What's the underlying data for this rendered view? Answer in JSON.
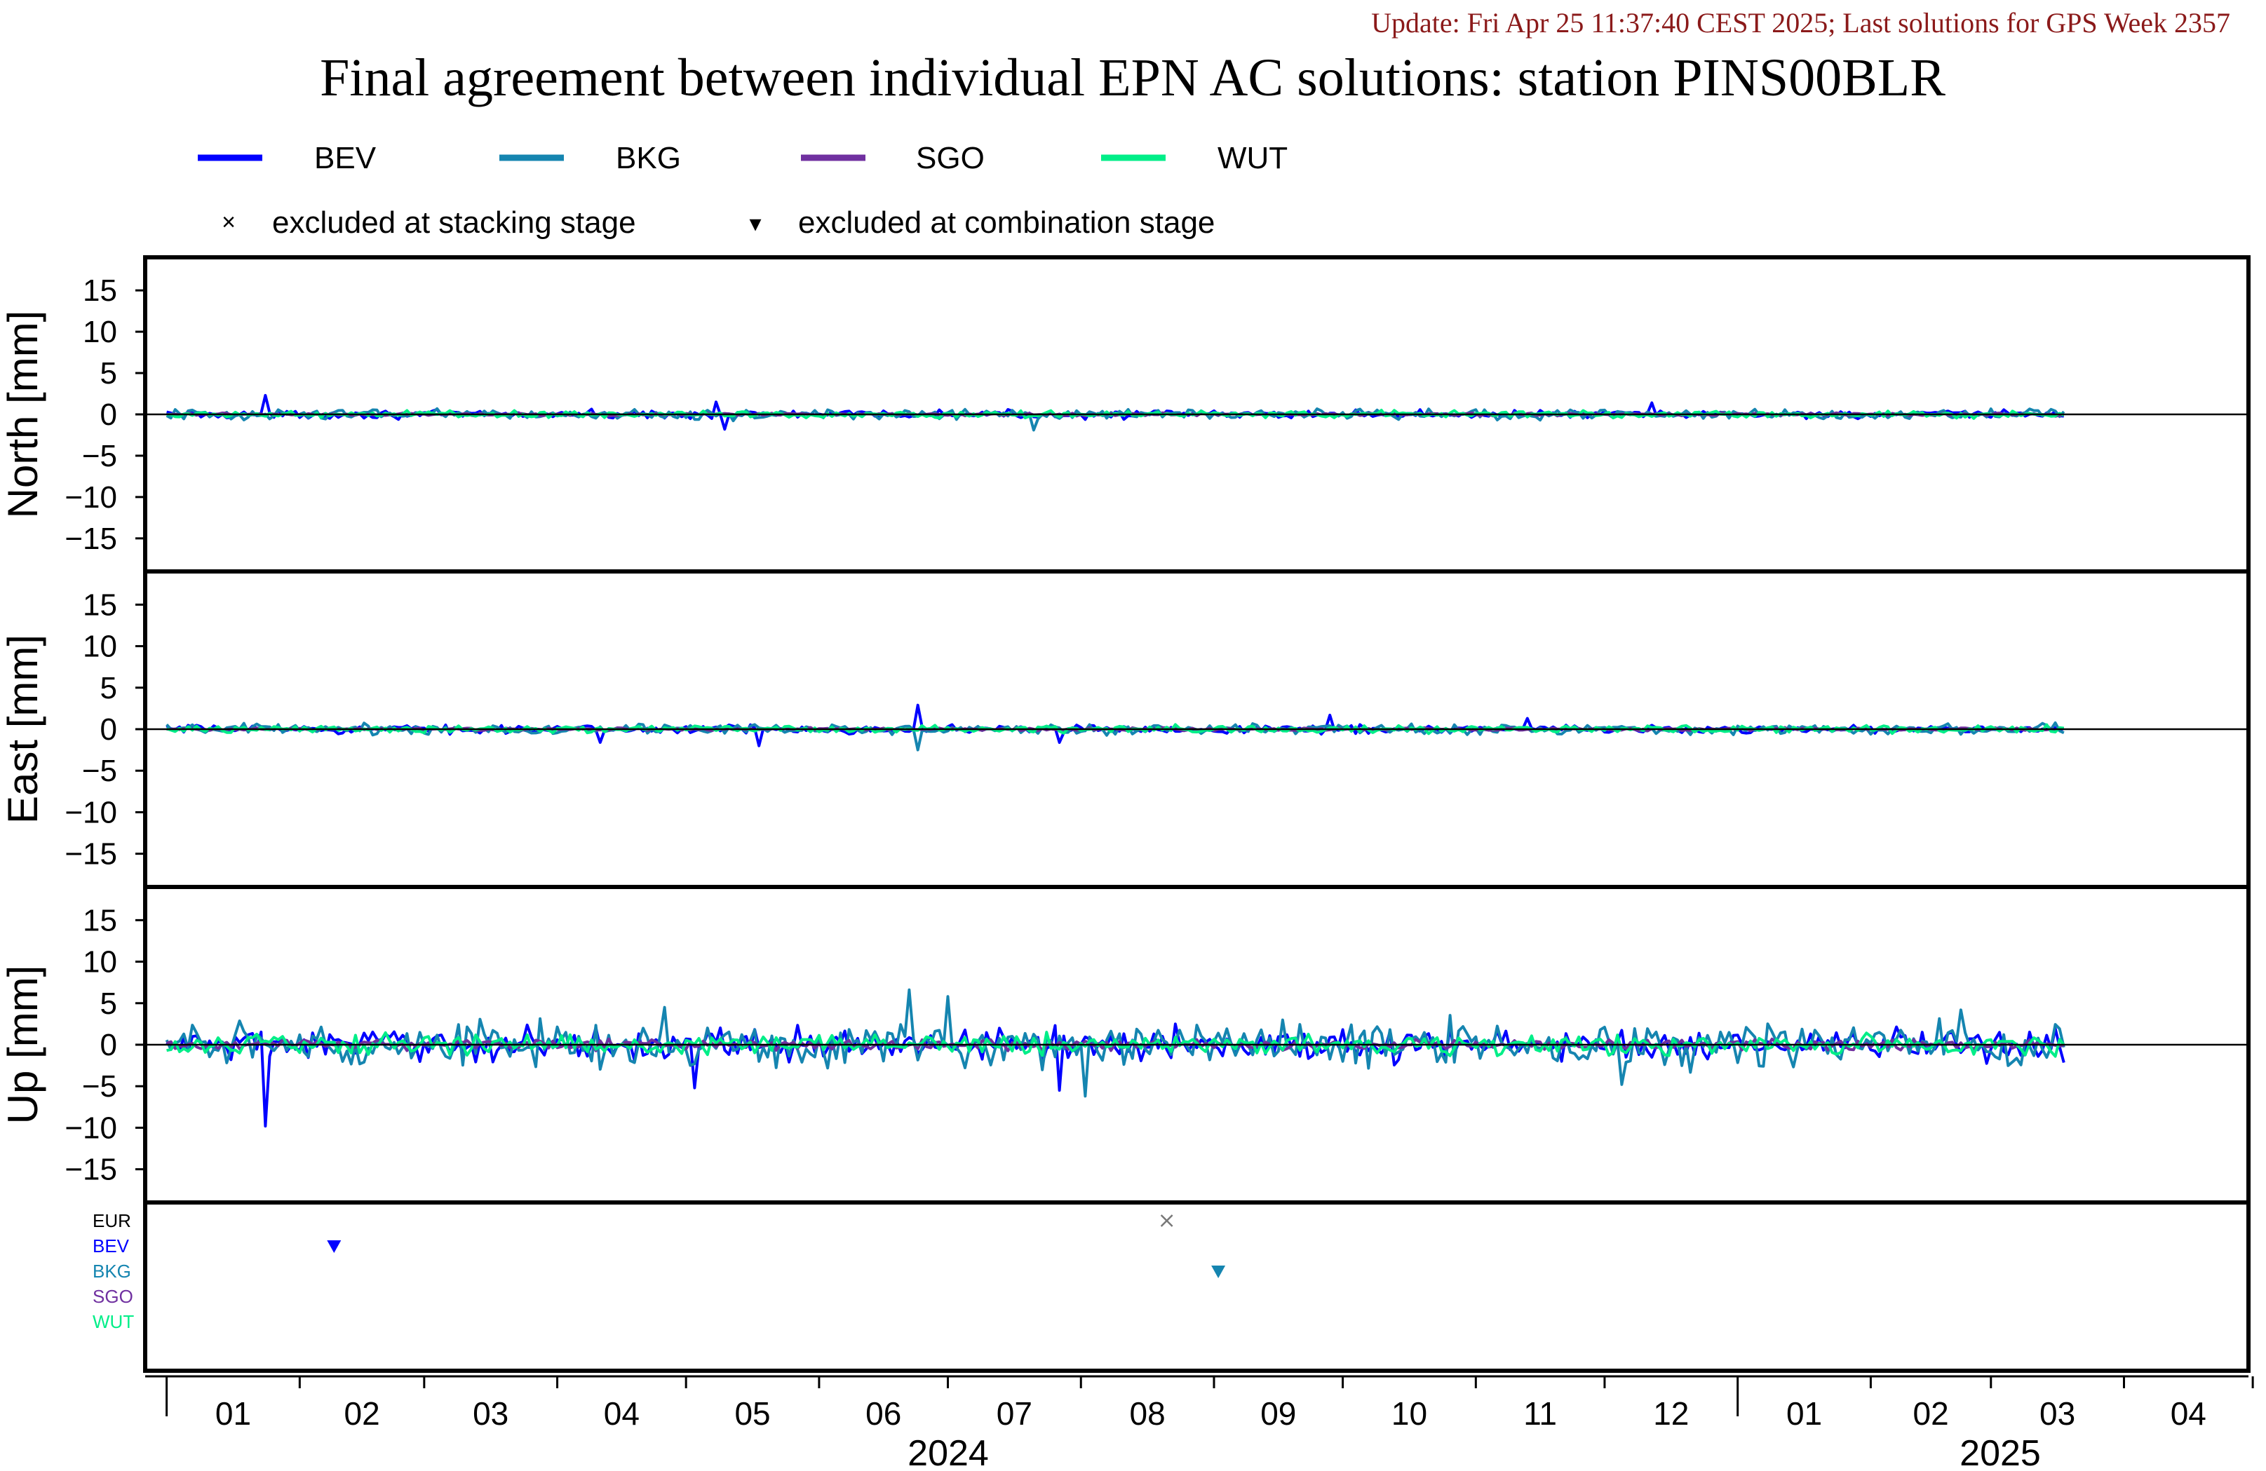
{
  "update_text": "Update: Fri Apr 25 11:37:40 CEST 2025; Last solutions for GPS Week 2357",
  "title": "Final agreement between individual EPN AC solutions: station PINS00BLR",
  "legend": {
    "series": [
      {
        "name": "BEV",
        "color": "#0000ff"
      },
      {
        "name": "BKG",
        "color": "#1585b0"
      },
      {
        "name": "SGO",
        "color": "#7030a0"
      },
      {
        "name": "WUT",
        "color": "#00ee88"
      }
    ],
    "stacking_label": "excluded at stacking stage",
    "combination_label": "excluded at combination stage",
    "stacking_symbol": "×",
    "combination_symbol": "▾"
  },
  "colors": {
    "update_text": "#8b1a1a",
    "EUR": "#000000",
    "BEV": "#0000ff",
    "BKG": "#1585b0",
    "SGO": "#7030a0",
    "WUT": "#00ee88",
    "zero_line": "#000000",
    "frame": "#000000"
  },
  "excl_rows": [
    "EUR",
    "BEV",
    "BKG",
    "SGO",
    "WUT"
  ],
  "x_axis": {
    "month_labels": [
      "01",
      "02",
      "03",
      "04",
      "05",
      "06",
      "07",
      "08",
      "09",
      "10",
      "11",
      "12",
      "01",
      "02",
      "03",
      "04"
    ],
    "year_labels": [
      "2024",
      "2025"
    ]
  },
  "chart_data": [
    {
      "type": "line",
      "panel": "North",
      "ylabel": "North [mm]",
      "ylim": [
        -19,
        19
      ],
      "yticks": [
        15,
        10,
        5,
        0,
        -5,
        -10,
        -15
      ],
      "xlim": [
        "2023-12-27",
        "2025-04-30"
      ],
      "series": [
        {
          "name": "BEV",
          "amplitude_mm": 0.4,
          "spikes": [
            {
              "date": "2024-01-24",
              "value": 2.3
            },
            {
              "date": "2024-05-08",
              "value": 1.5
            },
            {
              "date": "2024-05-10",
              "value": -1.8
            },
            {
              "date": "2024-12-12",
              "value": 1.4
            }
          ]
        },
        {
          "name": "BKG",
          "amplitude_mm": 0.5,
          "spikes": [
            {
              "date": "2024-07-21",
              "value": -1.9
            }
          ]
        },
        {
          "name": "SGO",
          "amplitude_mm": 0.15,
          "spikes": []
        },
        {
          "name": "WUT",
          "amplitude_mm": 0.35,
          "spikes": []
        }
      ]
    },
    {
      "type": "line",
      "panel": "East",
      "ylabel": "East [mm]",
      "ylim": [
        -19,
        19
      ],
      "yticks": [
        15,
        10,
        5,
        0,
        -5,
        -10,
        -15
      ],
      "xlim": [
        "2023-12-27",
        "2025-04-30"
      ],
      "series": [
        {
          "name": "BEV",
          "amplitude_mm": 0.4,
          "spikes": [
            {
              "date": "2024-04-11",
              "value": -1.6
            },
            {
              "date": "2024-05-18",
              "value": -2.0
            },
            {
              "date": "2024-06-24",
              "value": 2.9
            },
            {
              "date": "2024-07-27",
              "value": -1.6
            },
            {
              "date": "2024-09-28",
              "value": 1.7
            },
            {
              "date": "2024-11-13",
              "value": 1.3
            }
          ]
        },
        {
          "name": "BKG",
          "amplitude_mm": 0.5,
          "spikes": [
            {
              "date": "2024-06-24",
              "value": -2.5
            }
          ]
        },
        {
          "name": "SGO",
          "amplitude_mm": 0.15,
          "spikes": []
        },
        {
          "name": "WUT",
          "amplitude_mm": 0.35,
          "spikes": []
        }
      ]
    },
    {
      "type": "line",
      "panel": "Up",
      "ylabel": "Up [mm]",
      "ylim": [
        -19,
        19
      ],
      "yticks": [
        15,
        10,
        5,
        0,
        -5,
        -10,
        -15
      ],
      "xlim": [
        "2023-12-27",
        "2025-04-30"
      ],
      "series": [
        {
          "name": "BEV",
          "amplitude_mm": 1.6,
          "spikes": [
            {
              "date": "2024-01-24",
              "value": -9.8
            },
            {
              "date": "2024-05-03",
              "value": -5.2
            },
            {
              "date": "2024-07-27",
              "value": -5.5
            },
            {
              "date": "2024-08-23",
              "value": 2.5
            }
          ]
        },
        {
          "name": "BKG",
          "amplitude_mm": 2.2,
          "spikes": [
            {
              "date": "2024-06-22",
              "value": 6.6
            },
            {
              "date": "2024-07-01",
              "value": 5.8
            },
            {
              "date": "2024-08-02",
              "value": -6.2
            },
            {
              "date": "2024-04-26",
              "value": 4.5
            },
            {
              "date": "2025-02-22",
              "value": 4.2
            },
            {
              "date": "2024-12-05",
              "value": -4.8
            }
          ]
        },
        {
          "name": "SGO",
          "amplitude_mm": 0.5,
          "spikes": []
        },
        {
          "name": "WUT",
          "amplitude_mm": 1.0,
          "spikes": []
        }
      ]
    },
    {
      "type": "scatter",
      "panel": "exclusions",
      "xlim": [
        "2023-12-27",
        "2025-04-30"
      ],
      "points": [
        {
          "series": "BEV",
          "date": "2024-02-09",
          "stage": "combination"
        },
        {
          "series": "EUR",
          "date": "2024-08-21",
          "stage": "stacking"
        },
        {
          "series": "BKG",
          "date": "2024-09-02",
          "stage": "combination"
        }
      ]
    }
  ]
}
